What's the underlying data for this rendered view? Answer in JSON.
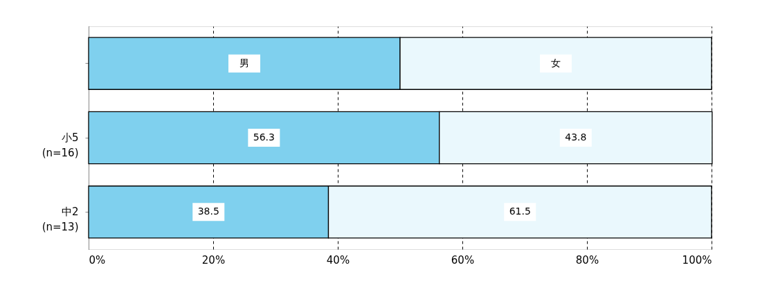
{
  "chart_data": {
    "type": "bar",
    "orientation": "horizontal",
    "stacked": true,
    "categories": [
      null,
      "小5\n(n=16)",
      "中2\n(n=13)"
    ],
    "series": [
      {
        "color": "#7fd0ee",
        "values": [
          50,
          56.3,
          38.5
        ],
        "value_labels": [
          "男",
          "56.3",
          "38.5"
        ]
      },
      {
        "color": "#eaf8fd",
        "values": [
          50,
          43.8,
          61.5
        ],
        "value_labels": [
          "女",
          "43.8",
          "61.5"
        ]
      }
    ],
    "xlim": [
      0,
      100
    ],
    "xticks": [
      {
        "value": 0,
        "label": "0%"
      },
      {
        "value": 20,
        "label": "20%"
      },
      {
        "value": 40,
        "label": "40%"
      },
      {
        "value": 60,
        "label": "60%"
      },
      {
        "value": 80,
        "label": "80%"
      },
      {
        "value": 100,
        "label": "100%"
      }
    ],
    "grid": "x",
    "line_style": "dashed"
  }
}
